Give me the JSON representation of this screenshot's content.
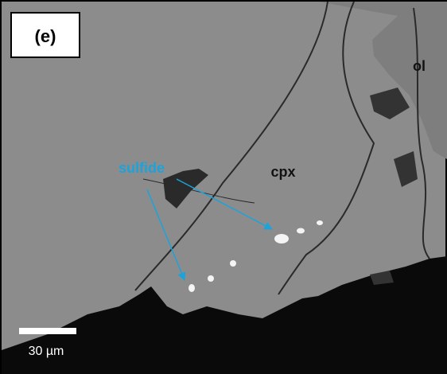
{
  "panel_label": "(e)",
  "labels": {
    "ol": "ol",
    "cpx": "cpx",
    "sulfide": "sulfide"
  },
  "scale_bar": "30 µm"
}
